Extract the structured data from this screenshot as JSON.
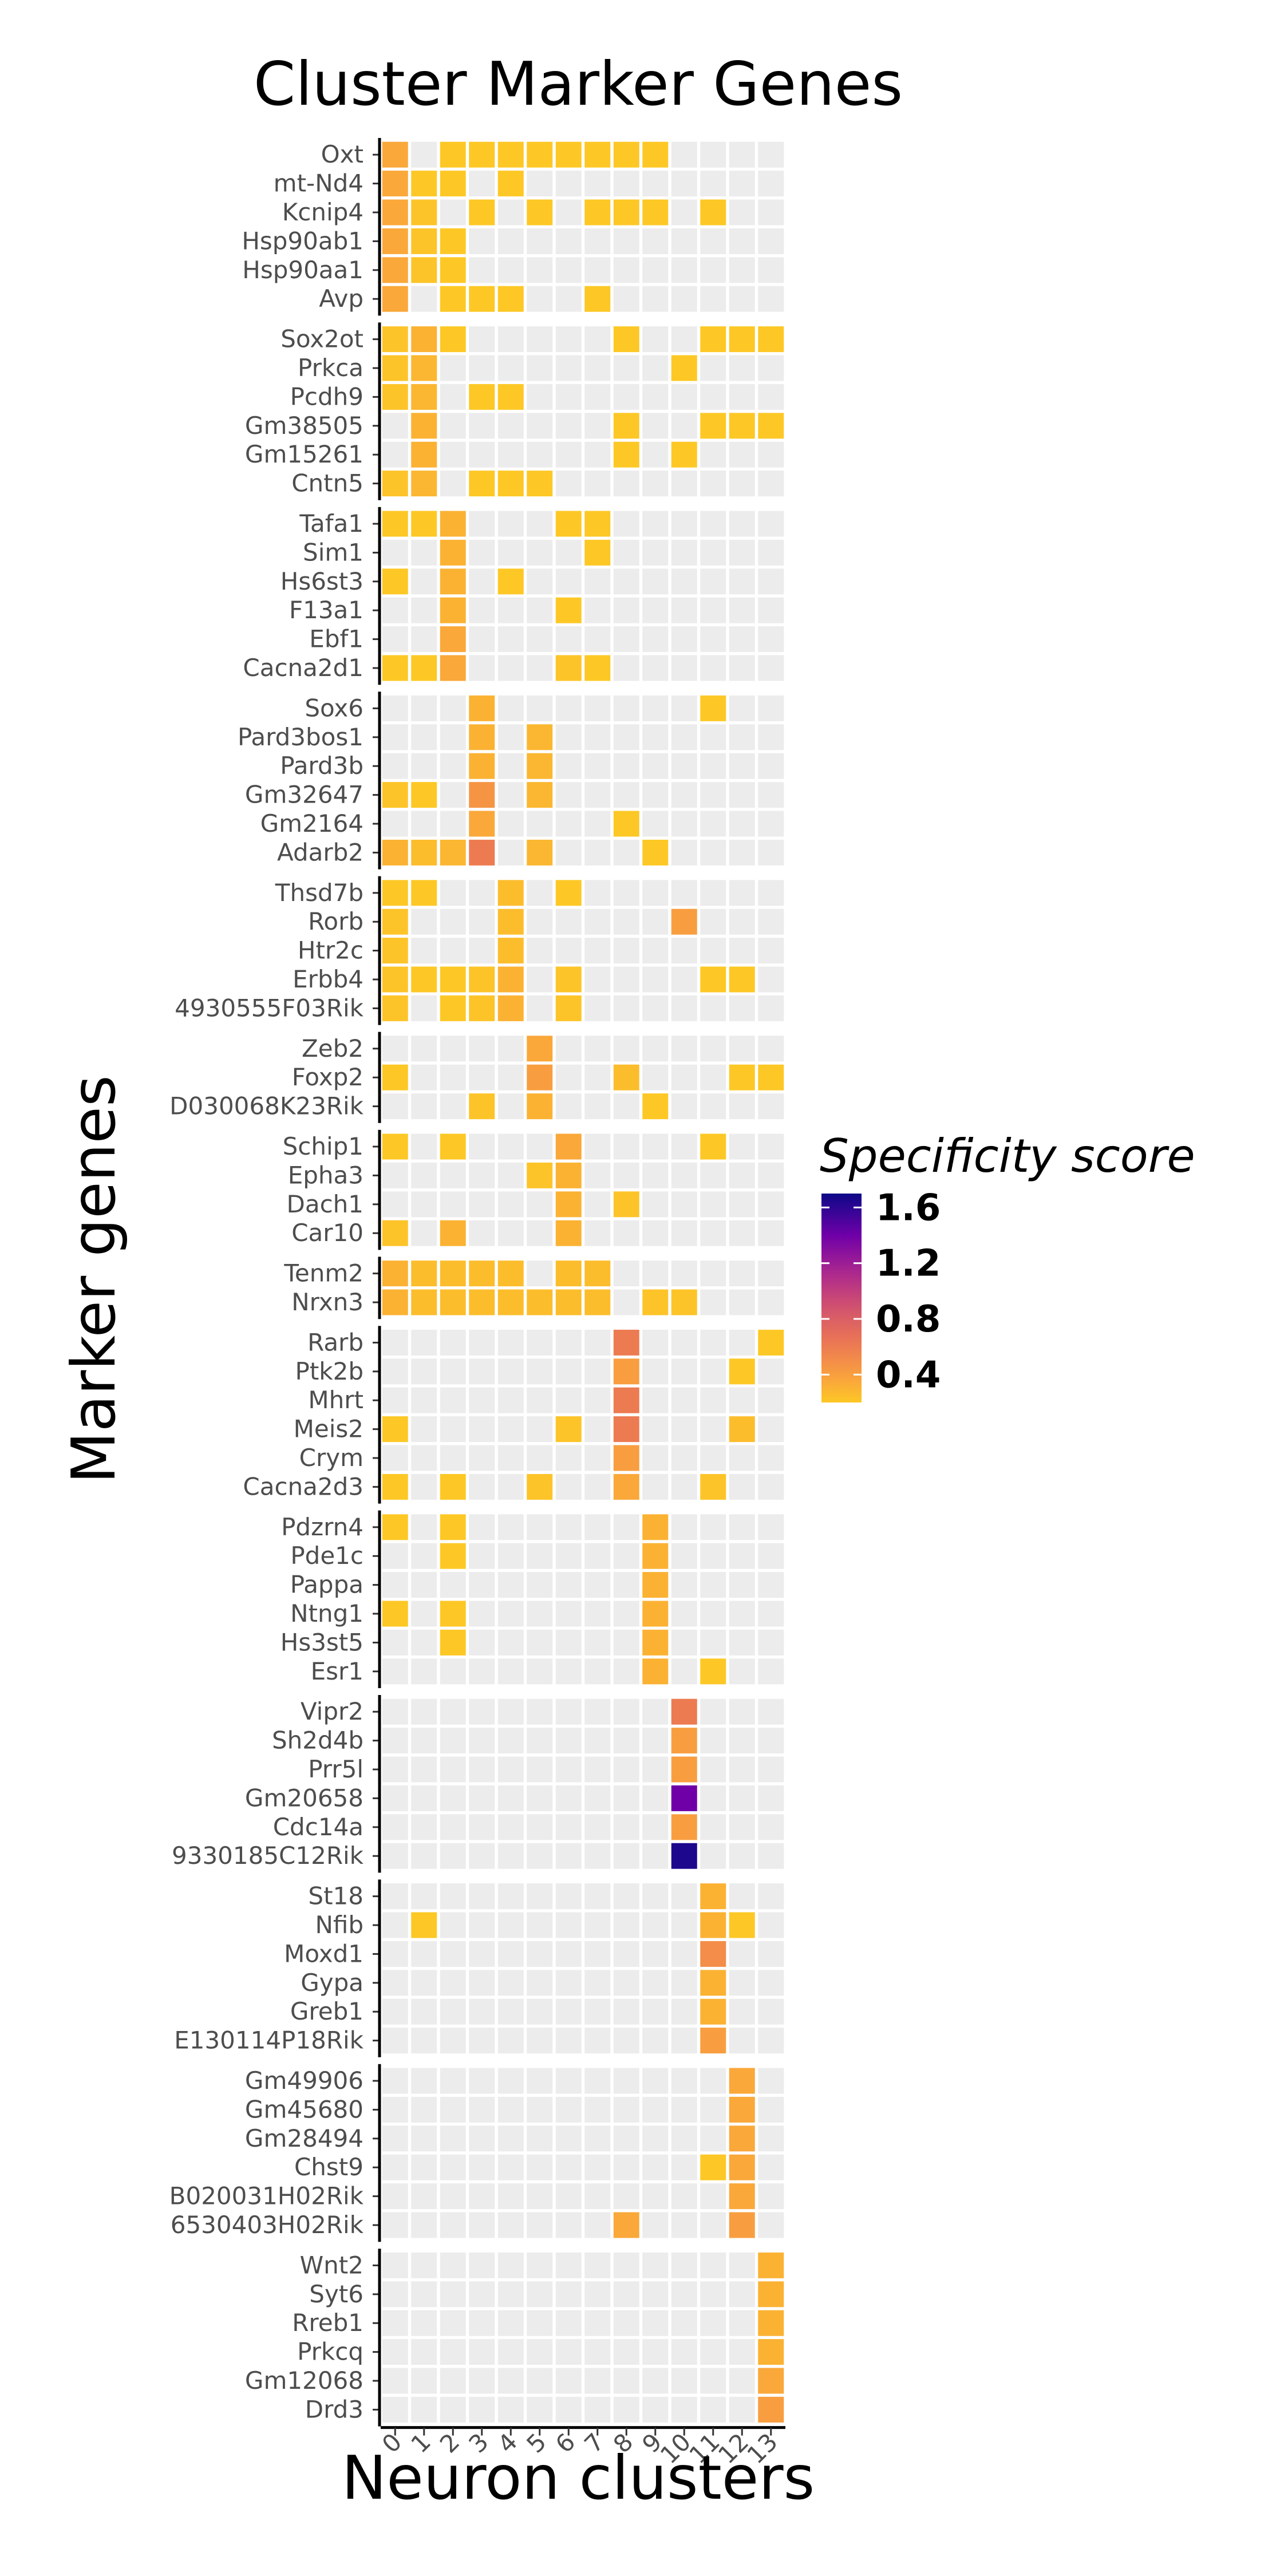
{
  "chart_data": {
    "type": "heatmap",
    "title": "Cluster Marker Genes",
    "xlabel": "Neuron clusters",
    "ylabel": "Marker genes",
    "x_categories": [
      "0",
      "1",
      "2",
      "3",
      "4",
      "5",
      "6",
      "7",
      "8",
      "9",
      "10",
      "11",
      "12",
      "13"
    ],
    "legend": {
      "title": "Specificity score",
      "ticks": [
        "1.6",
        "1.2",
        "0.8",
        "0.4"
      ],
      "range": [
        0.2,
        1.7
      ],
      "placement": "right"
    },
    "groups": [
      {
        "genes": [
          {
            "name": "Oxt",
            "values": {
              "0": 0.35,
              "2": 0.2,
              "3": 0.2,
              "4": 0.2,
              "5": 0.2,
              "6": 0.2,
              "7": 0.2,
              "8": 0.2,
              "9": 0.2
            }
          },
          {
            "name": "mt-Nd4",
            "values": {
              "0": 0.35,
              "1": 0.2,
              "2": 0.2,
              "4": 0.2
            }
          },
          {
            "name": "Kcnip4",
            "values": {
              "0": 0.35,
              "1": 0.22,
              "3": 0.2,
              "5": 0.2,
              "7": 0.2,
              "8": 0.2,
              "9": 0.2,
              "11": 0.2
            }
          },
          {
            "name": "Hsp90ab1",
            "values": {
              "0": 0.35,
              "1": 0.22,
              "2": 0.2
            }
          },
          {
            "name": "Hsp90aa1",
            "values": {
              "0": 0.35,
              "1": 0.22,
              "2": 0.2
            }
          },
          {
            "name": "Avp",
            "values": {
              "0": 0.35,
              "2": 0.2,
              "3": 0.2,
              "4": 0.2,
              "7": 0.2
            }
          }
        ]
      },
      {
        "genes": [
          {
            "name": "Sox2ot",
            "values": {
              "0": 0.22,
              "1": 0.3,
              "2": 0.2,
              "8": 0.2,
              "11": 0.2,
              "12": 0.2,
              "13": 0.2
            }
          },
          {
            "name": "Prkca",
            "values": {
              "0": 0.22,
              "1": 0.28,
              "10": 0.2
            }
          },
          {
            "name": "Pcdh9",
            "values": {
              "0": 0.22,
              "1": 0.28,
              "3": 0.2,
              "4": 0.2
            }
          },
          {
            "name": "Gm38505",
            "values": {
              "1": 0.3,
              "8": 0.2,
              "11": 0.2,
              "12": 0.2,
              "13": 0.2
            }
          },
          {
            "name": "Gm15261",
            "values": {
              "1": 0.3,
              "8": 0.2,
              "10": 0.2
            }
          },
          {
            "name": "Cntn5",
            "values": {
              "0": 0.22,
              "1": 0.28,
              "3": 0.2,
              "4": 0.2,
              "5": 0.2
            }
          }
        ]
      },
      {
        "genes": [
          {
            "name": "Tafa1",
            "values": {
              "0": 0.2,
              "1": 0.2,
              "2": 0.3,
              "6": 0.2,
              "7": 0.2
            }
          },
          {
            "name": "Sim1",
            "values": {
              "2": 0.3,
              "7": 0.2
            }
          },
          {
            "name": "Hs6st3",
            "values": {
              "0": 0.2,
              "2": 0.3,
              "4": 0.2
            }
          },
          {
            "name": "F13a1",
            "values": {
              "2": 0.3,
              "6": 0.2
            }
          },
          {
            "name": "Ebf1",
            "values": {
              "2": 0.35
            }
          },
          {
            "name": "Cacna2d1",
            "values": {
              "0": 0.2,
              "1": 0.2,
              "2": 0.35,
              "6": 0.22,
              "7": 0.2
            }
          }
        ]
      },
      {
        "genes": [
          {
            "name": "Sox6",
            "values": {
              "3": 0.3,
              "11": 0.2
            }
          },
          {
            "name": "Pard3bos1",
            "values": {
              "3": 0.3,
              "5": 0.28
            }
          },
          {
            "name": "Pard3b",
            "values": {
              "3": 0.3,
              "5": 0.28
            }
          },
          {
            "name": "Gm32647",
            "values": {
              "0": 0.22,
              "1": 0.2,
              "3": 0.45,
              "5": 0.28
            }
          },
          {
            "name": "Gm2164",
            "values": {
              "3": 0.35,
              "8": 0.2
            }
          },
          {
            "name": "Adarb2",
            "values": {
              "0": 0.3,
              "1": 0.25,
              "2": 0.28,
              "3": 0.6,
              "5": 0.28,
              "9": 0.2
            }
          }
        ]
      },
      {
        "genes": [
          {
            "name": "Thsd7b",
            "values": {
              "0": 0.2,
              "1": 0.2,
              "4": 0.25,
              "6": 0.2
            }
          },
          {
            "name": "Rorb",
            "values": {
              "0": 0.22,
              "4": 0.25,
              "10": 0.4
            }
          },
          {
            "name": "Htr2c",
            "values": {
              "0": 0.22,
              "4": 0.25
            }
          },
          {
            "name": "Erbb4",
            "values": {
              "0": 0.22,
              "1": 0.2,
              "2": 0.2,
              "3": 0.22,
              "4": 0.3,
              "6": 0.22,
              "11": 0.2,
              "12": 0.2
            }
          },
          {
            "name": "4930555F03Rik",
            "values": {
              "0": 0.22,
              "2": 0.2,
              "3": 0.22,
              "4": 0.3,
              "6": 0.22
            }
          }
        ]
      },
      {
        "genes": [
          {
            "name": "Zeb2",
            "values": {
              "5": 0.35
            }
          },
          {
            "name": "Foxp2",
            "values": {
              "0": 0.2,
              "5": 0.4,
              "8": 0.25,
              "12": 0.2,
              "13": 0.2
            }
          },
          {
            "name": "D030068K23Rik",
            "values": {
              "3": 0.22,
              "5": 0.3,
              "9": 0.2
            }
          }
        ]
      },
      {
        "genes": [
          {
            "name": "Schip1",
            "values": {
              "0": 0.2,
              "2": 0.2,
              "6": 0.35,
              "11": 0.2
            }
          },
          {
            "name": "Epha3",
            "values": {
              "5": 0.22,
              "6": 0.3
            }
          },
          {
            "name": "Dach1",
            "values": {
              "6": 0.3,
              "8": 0.22
            }
          },
          {
            "name": "Car10",
            "values": {
              "0": 0.22,
              "2": 0.3,
              "6": 0.3
            }
          }
        ]
      },
      {
        "genes": [
          {
            "name": "Tenm2",
            "values": {
              "0": 0.3,
              "1": 0.25,
              "2": 0.25,
              "3": 0.25,
              "4": 0.25,
              "6": 0.25,
              "7": 0.25
            }
          },
          {
            "name": "Nrxn3",
            "values": {
              "0": 0.3,
              "1": 0.25,
              "2": 0.25,
              "3": 0.25,
              "4": 0.25,
              "5": 0.25,
              "6": 0.25,
              "7": 0.25,
              "9": 0.22,
              "10": 0.22
            }
          }
        ]
      },
      {
        "genes": [
          {
            "name": "Rarb",
            "values": {
              "8": 0.6,
              "13": 0.2
            }
          },
          {
            "name": "Ptk2b",
            "values": {
              "8": 0.4,
              "12": 0.2
            }
          },
          {
            "name": "Mhrt",
            "values": {
              "8": 0.6
            }
          },
          {
            "name": "Meis2",
            "values": {
              "0": 0.2,
              "6": 0.22,
              "8": 0.6,
              "12": 0.25
            }
          },
          {
            "name": "Crym",
            "values": {
              "8": 0.4
            }
          },
          {
            "name": "Cacna2d3",
            "values": {
              "0": 0.2,
              "2": 0.2,
              "5": 0.22,
              "8": 0.35,
              "11": 0.22
            }
          }
        ]
      },
      {
        "genes": [
          {
            "name": "Pdzrn4",
            "values": {
              "0": 0.2,
              "2": 0.2,
              "9": 0.3
            }
          },
          {
            "name": "Pde1c",
            "values": {
              "2": 0.2,
              "9": 0.3
            }
          },
          {
            "name": "Pappa",
            "values": {
              "9": 0.3
            }
          },
          {
            "name": "Ntng1",
            "values": {
              "0": 0.2,
              "2": 0.2,
              "9": 0.3
            }
          },
          {
            "name": "Hs3st5",
            "values": {
              "2": 0.2,
              "9": 0.3
            }
          },
          {
            "name": "Esr1",
            "values": {
              "9": 0.3,
              "11": 0.2
            }
          }
        ]
      },
      {
        "genes": [
          {
            "name": "Vipr2",
            "values": {
              "10": 0.6
            }
          },
          {
            "name": "Sh2d4b",
            "values": {
              "10": 0.4
            }
          },
          {
            "name": "Prr5l",
            "values": {
              "10": 0.4
            }
          },
          {
            "name": "Gm20658",
            "values": {
              "10": 1.4
            }
          },
          {
            "name": "Cdc14a",
            "values": {
              "10": 0.4
            }
          },
          {
            "name": "9330185C12Rik",
            "values": {
              "10": 1.65
            }
          }
        ]
      },
      {
        "genes": [
          {
            "name": "St18",
            "values": {
              "11": 0.3
            }
          },
          {
            "name": "Nfib",
            "values": {
              "1": 0.2,
              "11": 0.3,
              "12": 0.2
            }
          },
          {
            "name": "Moxd1",
            "values": {
              "11": 0.5
            }
          },
          {
            "name": "Gypa",
            "values": {
              "11": 0.3
            }
          },
          {
            "name": "Greb1",
            "values": {
              "11": 0.3
            }
          },
          {
            "name": "E130114P18Rik",
            "values": {
              "11": 0.4
            }
          }
        ]
      },
      {
        "genes": [
          {
            "name": "Gm49906",
            "values": {
              "12": 0.35
            }
          },
          {
            "name": "Gm45680",
            "values": {
              "12": 0.35
            }
          },
          {
            "name": "Gm28494",
            "values": {
              "12": 0.35
            }
          },
          {
            "name": "Chst9",
            "values": {
              "11": 0.2,
              "12": 0.35
            }
          },
          {
            "name": "B020031H02Rik",
            "values": {
              "12": 0.35
            }
          },
          {
            "name": "6530403H02Rik",
            "values": {
              "8": 0.35,
              "12": 0.4
            }
          }
        ]
      },
      {
        "genes": [
          {
            "name": "Wnt2",
            "values": {
              "13": 0.3
            }
          },
          {
            "name": "Syt6",
            "values": {
              "13": 0.3
            }
          },
          {
            "name": "Rreb1",
            "values": {
              "13": 0.3
            }
          },
          {
            "name": "Prkcq",
            "values": {
              "13": 0.3
            }
          },
          {
            "name": "Gm12068",
            "values": {
              "13": 0.35
            }
          },
          {
            "name": "Drd3",
            "values": {
              "13": 0.4
            }
          }
        ]
      }
    ]
  }
}
